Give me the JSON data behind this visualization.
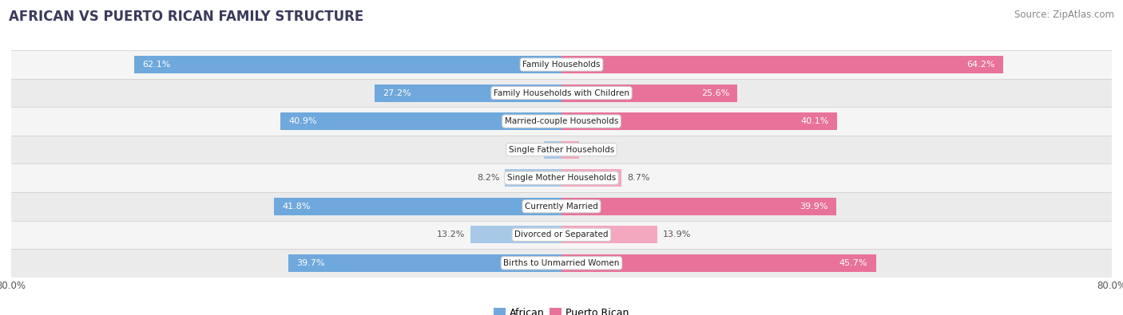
{
  "title": "AFRICAN VS PUERTO RICAN FAMILY STRUCTURE",
  "source": "Source: ZipAtlas.com",
  "categories": [
    "Family Households",
    "Family Households with Children",
    "Married-couple Households",
    "Single Father Households",
    "Single Mother Households",
    "Currently Married",
    "Divorced or Separated",
    "Births to Unmarried Women"
  ],
  "african_values": [
    62.1,
    27.2,
    40.9,
    2.5,
    8.2,
    41.8,
    13.2,
    39.7
  ],
  "puerto_rican_values": [
    64.2,
    25.6,
    40.1,
    2.6,
    8.7,
    39.9,
    13.9,
    45.7
  ],
  "african_color_large": "#6fa8dc",
  "african_color_small": "#a8c8e8",
  "puerto_rican_color_large": "#e8729a",
  "puerto_rican_color_small": "#f4a8c0",
  "xlim": 80.0,
  "bar_height": 0.62,
  "row_bg_even": "#f5f5f5",
  "row_bg_odd": "#ebebeb",
  "title_fontsize": 12,
  "source_fontsize": 8.5,
  "value_fontsize": 8,
  "category_fontsize": 7.5,
  "legend_label_african": "African",
  "legend_label_puerto_rican": "Puerto Rican",
  "small_threshold": 20
}
